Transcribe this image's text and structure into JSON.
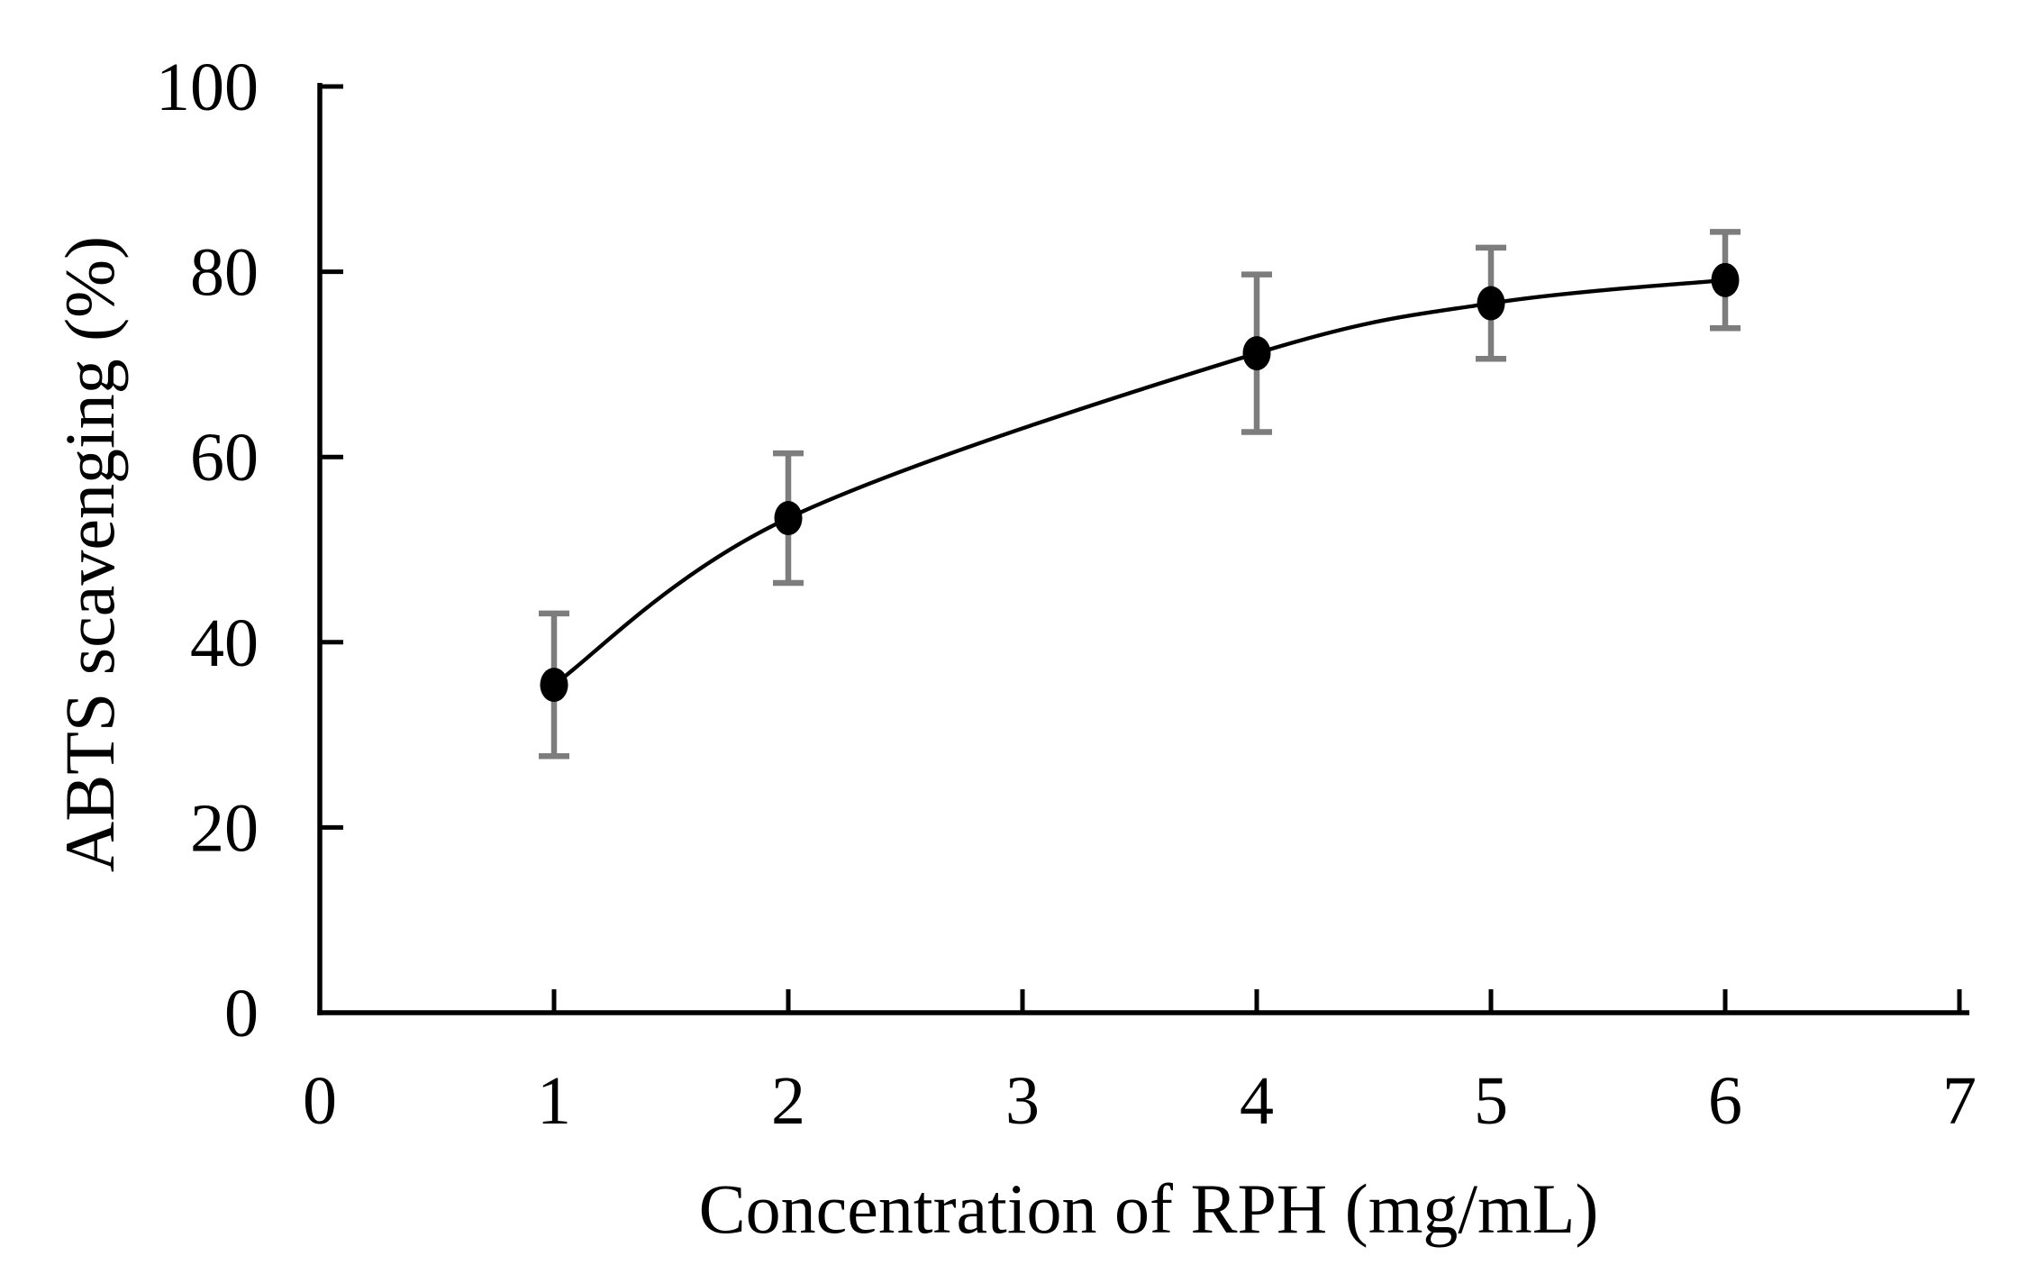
{
  "figure": {
    "background": "#ffffff",
    "kind": "scientific-figure"
  },
  "chart_data": {
    "type": "line",
    "title": "",
    "xlabel": "Concentration of RPH (mg/mL)",
    "ylabel": "ABTS scavenging (%)",
    "x": [
      1,
      2,
      4,
      5,
      6
    ],
    "y": [
      35.4,
      53.4,
      71.2,
      76.6,
      79.1
    ],
    "y_err": [
      7.7,
      7.0,
      8.5,
      6.0,
      5.2
    ],
    "xlim": [
      0,
      7
    ],
    "ylim": [
      0,
      100
    ],
    "xticks": [
      0,
      1,
      2,
      3,
      4,
      5,
      6,
      7
    ],
    "yticks": [
      0,
      20,
      40,
      60,
      80,
      100
    ],
    "grid": false,
    "legend_position": "none",
    "marker": "filled-ellipse",
    "line_style": "smooth",
    "colors": {
      "line": "#000000",
      "marker": "#000000",
      "error_bar": "#7d7d7d",
      "axis": "#000000",
      "text": "#000000",
      "background": "#ffffff"
    }
  }
}
